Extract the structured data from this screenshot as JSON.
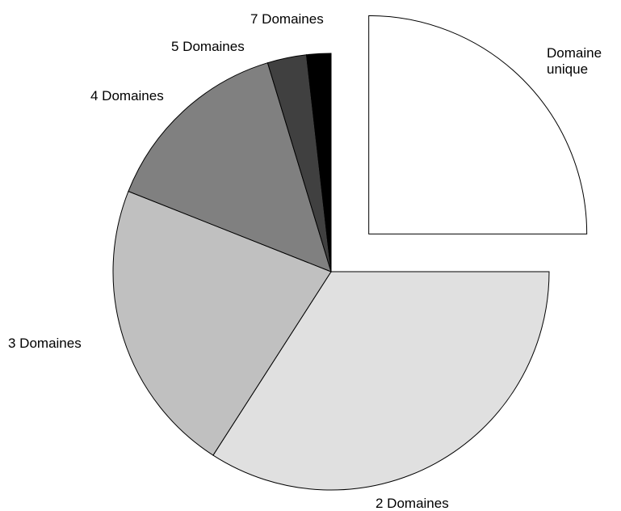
{
  "chart_data": {
    "type": "pie",
    "categories": [
      "Domaine unique",
      "2 Domaines",
      "3 Domaines",
      "4 Domaines",
      "5 Domaines",
      "7 Domaines"
    ],
    "values": [
      25,
      34.1,
      21.9,
      14.3,
      2.9,
      1.8
    ],
    "colors": [
      "#ffffff",
      "#e0e0e0",
      "#c0c0c0",
      "#808080",
      "#404040",
      "#000000"
    ],
    "exploded": [
      true,
      false,
      false,
      false,
      false,
      false
    ]
  }
}
